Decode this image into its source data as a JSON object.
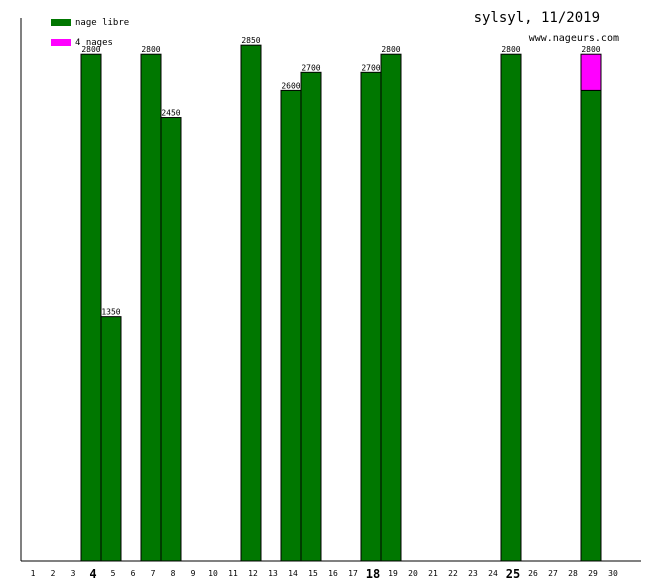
{
  "colors": {
    "nage_libre": "#007700",
    "quatre_nages": "#ff00ff",
    "axis": "#000000",
    "background": "#ffffff"
  },
  "chart_data": {
    "type": "bar",
    "title": "sylsyl, 11/2019",
    "subtitle": "www.nageurs.com",
    "xlabel": "",
    "ylabel": "",
    "ylim": [
      0,
      3000
    ],
    "grid": false,
    "legend_position": "top-left",
    "legend": [
      {
        "name": "nage libre",
        "color": "#007700"
      },
      {
        "name": "4 nages",
        "color": "#ff00ff"
      }
    ],
    "categories": [
      "1",
      "2",
      "3",
      "4",
      "5",
      "6",
      "7",
      "8",
      "9",
      "10",
      "11",
      "12",
      "13",
      "14",
      "15",
      "16",
      "17",
      "18",
      "19",
      "20",
      "21",
      "22",
      "23",
      "24",
      "25",
      "26",
      "27",
      "28",
      "29",
      "30"
    ],
    "bold_categories": [
      "4",
      "18",
      "25"
    ],
    "series": [
      {
        "name": "nage libre",
        "color": "#007700",
        "values": [
          0,
          0,
          0,
          2800,
          1350,
          0,
          2800,
          2450,
          0,
          0,
          0,
          2850,
          0,
          2600,
          2700,
          0,
          0,
          2700,
          2800,
          0,
          0,
          0,
          0,
          0,
          2800,
          0,
          0,
          0,
          2600,
          0
        ]
      },
      {
        "name": "4 nages",
        "color": "#ff00ff",
        "values": [
          0,
          0,
          0,
          0,
          0,
          0,
          0,
          0,
          0,
          0,
          0,
          0,
          0,
          0,
          0,
          0,
          0,
          0,
          0,
          0,
          0,
          0,
          0,
          0,
          0,
          0,
          0,
          0,
          200,
          0
        ]
      }
    ],
    "totals": [
      0,
      0,
      0,
      2800,
      1350,
      0,
      2800,
      2450,
      0,
      0,
      0,
      2850,
      0,
      2600,
      2700,
      0,
      0,
      2700,
      2800,
      0,
      0,
      0,
      0,
      0,
      2800,
      0,
      0,
      0,
      2800,
      0
    ]
  }
}
